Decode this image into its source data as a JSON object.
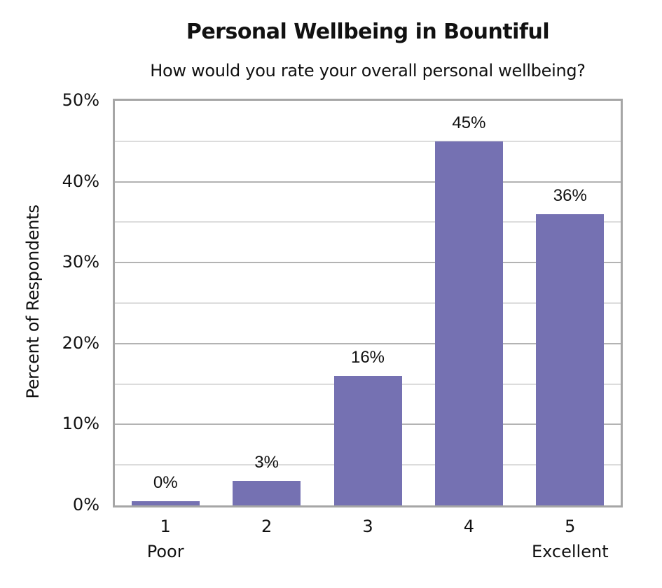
{
  "chart_data": {
    "type": "bar",
    "title": "Personal Wellbeing in Bountiful",
    "subtitle": "How would you rate your overall personal wellbeing?",
    "xlabel": "",
    "ylabel": "Percent of Respondents",
    "categories": [
      "1",
      "2",
      "3",
      "4",
      "5"
    ],
    "category_sublabels": [
      "Poor",
      "",
      "",
      "",
      "Excellent"
    ],
    "values": [
      0.5,
      3,
      16,
      45,
      36
    ],
    "data_labels": [
      "0%",
      "3%",
      "16%",
      "45%",
      "36%"
    ],
    "ylim": [
      0,
      50
    ],
    "yticks": [
      "0%",
      "10%",
      "20%",
      "30%",
      "40%",
      "50%"
    ],
    "grid": true,
    "minor_grid": true,
    "legend": null,
    "bar_color": "#7571b2"
  }
}
